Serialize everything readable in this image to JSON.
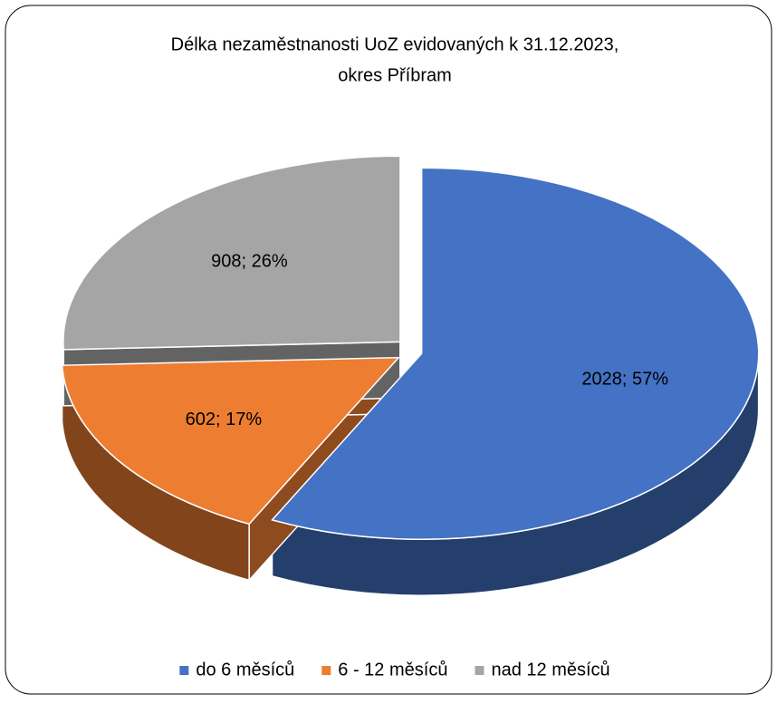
{
  "chart_data": {
    "type": "pie3d",
    "title": [
      "Délka nezaměstnanosti UoZ evidovaných k 31.12.2023,",
      "okres Příbram"
    ],
    "categories": [
      "do 6 měsíců",
      "6 - 12 měsíců",
      "nad 12 měsíců"
    ],
    "values": [
      2028,
      602,
      908
    ],
    "value_labels": [
      "2028; 57%",
      "602; 17%",
      "908; 26%"
    ],
    "colors": [
      "#4472c4",
      "#ed7d31",
      "#a5a5a5"
    ]
  }
}
